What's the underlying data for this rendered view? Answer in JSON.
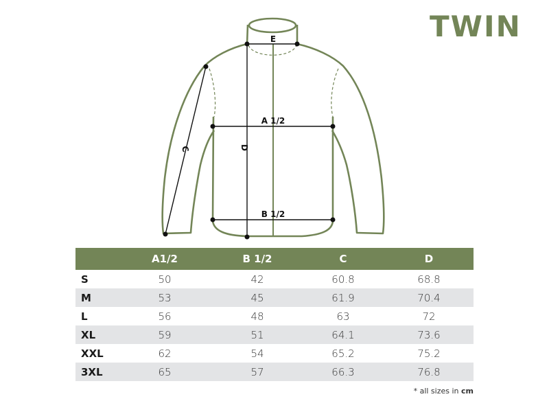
{
  "brand": {
    "name": "TWIN",
    "color": "#738557"
  },
  "diagram": {
    "labels": {
      "e": "E",
      "a": "A 1/2",
      "b": "B 1/2",
      "c": "C",
      "d": "D"
    },
    "outline_color": "#738557"
  },
  "table": {
    "header_color": "#738557",
    "alt_row_color": "#e3e4e6",
    "columns": [
      "",
      "A1/2",
      "B 1/2",
      "C",
      "D"
    ],
    "rows": [
      {
        "size": "S",
        "a": "50",
        "b": "42",
        "c": "60.8",
        "d": "68.8"
      },
      {
        "size": "M",
        "a": "53",
        "b": "45",
        "c": "61.9",
        "d": "70.4"
      },
      {
        "size": "L",
        "a": "56",
        "b": "48",
        "c": "63",
        "d": "72"
      },
      {
        "size": "XL",
        "a": "59",
        "b": "51",
        "c": "64.1",
        "d": "73.6"
      },
      {
        "size": "XXL",
        "a": "62",
        "b": "54",
        "c": "65.2",
        "d": "75.2"
      },
      {
        "size": "3XL",
        "a": "65",
        "b": "57",
        "c": "66.3",
        "d": "76.8"
      }
    ]
  },
  "footnote": {
    "prefix": "* all sizes in ",
    "unit": "cm"
  }
}
